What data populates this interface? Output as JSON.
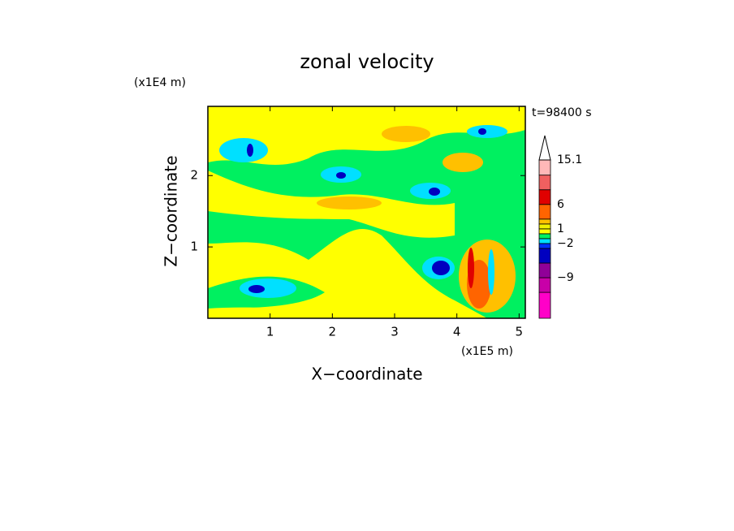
{
  "chart_data": {
    "type": "contour",
    "title": "zonal velocity",
    "x_label": "X−coordinate",
    "y_label": "Z−coordinate",
    "x_unit": "(x1E5 m)",
    "y_unit": "(x1E4 m)",
    "annotation": "t=98400 s",
    "xlim": [
      0,
      5.1
    ],
    "ylim": [
      0,
      2.97
    ],
    "xticks": [
      1,
      2,
      3,
      4,
      5
    ],
    "yticks": [
      1,
      2
    ],
    "colorbar": {
      "levels": [
        -17.3,
        -12,
        -9,
        -6,
        -3,
        -2,
        -1,
        0,
        1,
        2,
        3,
        6,
        9,
        12,
        15.1
      ],
      "colors": [
        "#ff00c8",
        "#c800a8",
        "#900098",
        "#0000c0",
        "#0030ff",
        "#00e0ff",
        "#00f060",
        "#ffff00",
        "#f0f000",
        "#ffc000",
        "#ff6400",
        "#e00000",
        "#f06060",
        "#ffb8b8"
      ],
      "extend_color": "#ffffff",
      "ticks": [
        {
          "value": -9,
          "label": "−9"
        },
        {
          "value": -2,
          "label": "−2"
        },
        1,
        6,
        15.1
      ]
    }
  }
}
